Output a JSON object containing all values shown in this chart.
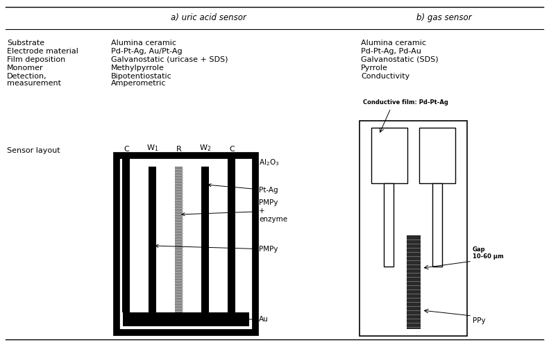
{
  "title_a": "a) uric acid sensor",
  "title_b": "b) gas sensor",
  "row_labels": [
    "Substrate",
    "Electrode material",
    "Film deposition",
    "Monomer",
    "Detection,",
    "measurement"
  ],
  "col_a": [
    "Alumina ceramic",
    "Pd-Pt-Ag, Au/Pt-Ag",
    "Galvanostatic (uricase + SDS)",
    "Methylpyrrole",
    "Bipotentiostatic",
    "Amperometric"
  ],
  "col_b": [
    "Alumina ceramic",
    "Pd-Pt-Ag, Pd-Au",
    "Galvanostatic (SDS)",
    "Pyrrole",
    "Conductivity"
  ],
  "sensor_layout_label": "Sensor layout",
  "conductive_film_label": "Conductive film: Pd-Pt-Ag",
  "gap_label": "Gap\n10-60 μm",
  "ppy_label": "PPy",
  "layer_labels": [
    "Al₂O₃",
    "Pt-Ag",
    "PMPy\n+\nenzyme",
    "PMPy",
    "Au"
  ],
  "electrode_labels": [
    "C",
    "W₁",
    "R",
    "W₂",
    "C"
  ],
  "bg_color": "#ffffff",
  "lc": "#000000"
}
